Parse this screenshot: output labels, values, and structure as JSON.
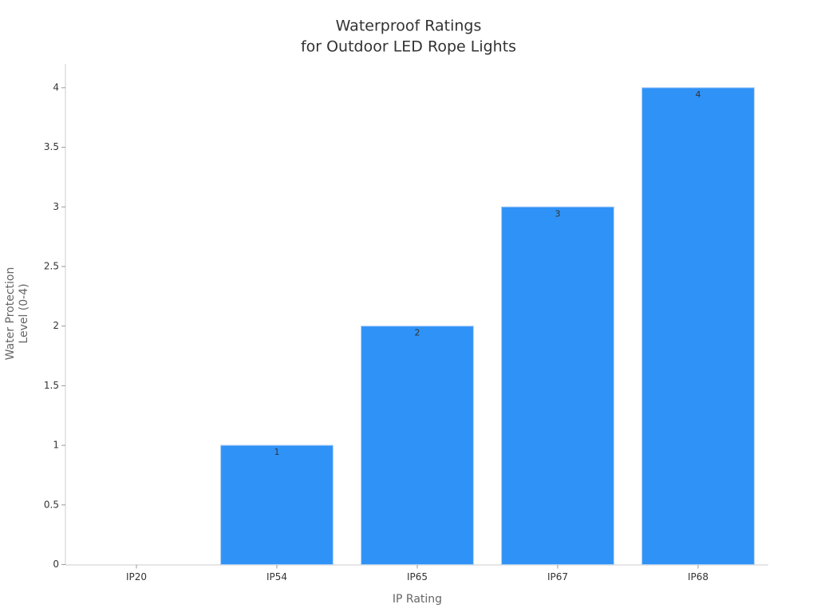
{
  "chart_data": {
    "type": "bar",
    "title": [
      "Waterproof Ratings",
      "for Outdoor LED Rope Lights"
    ],
    "xlabel": "IP Rating",
    "ylabel": [
      "Water Protection",
      "Level (0-4)"
    ],
    "categories": [
      "IP20",
      "IP54",
      "IP65",
      "IP67",
      "IP68"
    ],
    "values": [
      0,
      1,
      2,
      3,
      4
    ],
    "color": "#2f92f7",
    "ylim": [
      0,
      4.2
    ],
    "yticks": [
      0,
      0.5,
      1,
      1.5,
      2,
      2.5,
      3,
      3.5,
      4
    ],
    "grid": false
  }
}
